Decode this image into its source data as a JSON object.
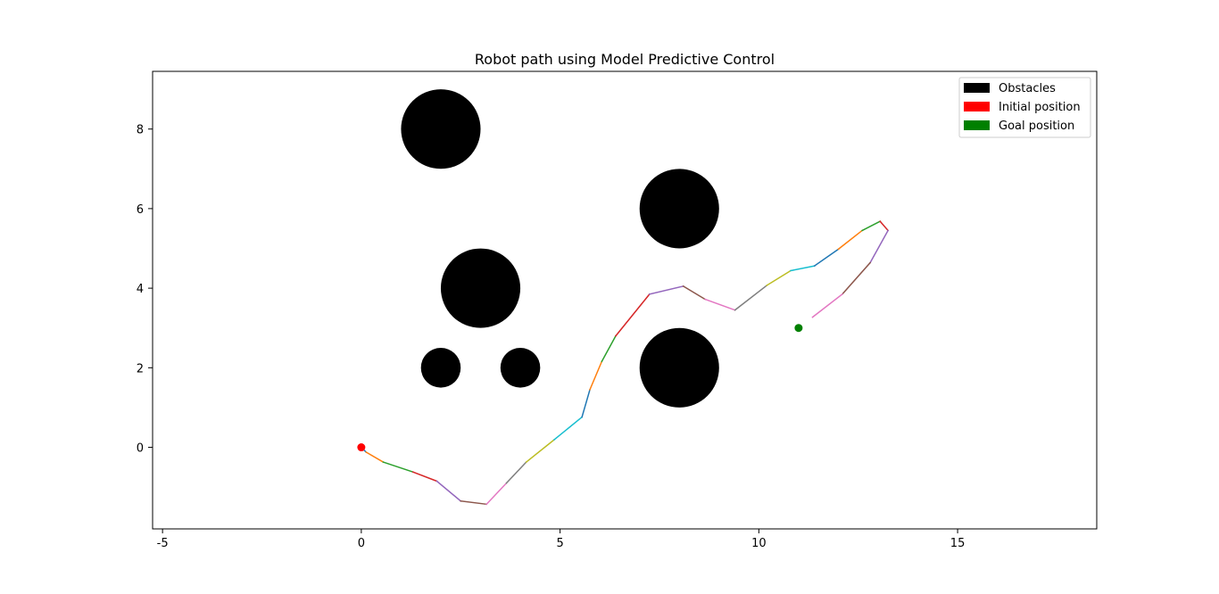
{
  "chart_data": {
    "type": "line",
    "title": "Robot path using Model Predictive Control",
    "xlabel": "",
    "ylabel": "",
    "xlim": [
      -5.25,
      18.5
    ],
    "ylim": [
      -2.05,
      9.45
    ],
    "x_ticks": [
      -5,
      0,
      5,
      10,
      15
    ],
    "y_ticks": [
      0,
      2,
      4,
      6,
      8
    ],
    "grid": false,
    "legend": {
      "placement": "top-right",
      "entries": [
        {
          "label": "Obstacles",
          "color": "#000000"
        },
        {
          "label": "Initial position",
          "color": "#ff0000"
        },
        {
          "label": "Goal position",
          "color": "#008000"
        }
      ]
    },
    "obstacles": [
      {
        "x": 2,
        "y": 8,
        "r": 1
      },
      {
        "x": 8,
        "y": 6,
        "r": 1
      },
      {
        "x": 3,
        "y": 4,
        "r": 1
      },
      {
        "x": 2,
        "y": 2,
        "r": 0.5
      },
      {
        "x": 4,
        "y": 2,
        "r": 0.5
      },
      {
        "x": 8,
        "y": 2,
        "r": 1
      }
    ],
    "initial_position": {
      "x": 0,
      "y": 0,
      "color": "#ff0000"
    },
    "goal_position": {
      "x": 11,
      "y": 3,
      "color": "#008000"
    },
    "segment_colors": [
      "#1f77b4",
      "#ff7f0e",
      "#2ca02c",
      "#d62728",
      "#9467bd",
      "#8c564b",
      "#e377c2",
      "#7f7f7f",
      "#bcbd22",
      "#17becf"
    ],
    "path": [
      [
        0.0,
        0.0
      ],
      [
        0.12,
        -0.12
      ],
      [
        0.55,
        -0.37
      ],
      [
        1.3,
        -0.62
      ],
      [
        1.9,
        -0.85
      ],
      [
        2.5,
        -1.35
      ],
      [
        3.15,
        -1.43
      ],
      [
        3.65,
        -0.9
      ],
      [
        4.15,
        -0.37
      ],
      [
        4.85,
        0.19
      ],
      [
        5.55,
        0.76
      ],
      [
        5.75,
        1.45
      ],
      [
        6.05,
        2.16
      ],
      [
        6.4,
        2.8
      ],
      [
        7.25,
        3.85
      ],
      [
        8.1,
        4.05
      ],
      [
        8.65,
        3.72
      ],
      [
        9.4,
        3.45
      ],
      [
        10.2,
        4.07
      ],
      [
        10.8,
        4.44
      ],
      [
        11.4,
        4.56
      ],
      [
        12.0,
        4.98
      ],
      [
        12.6,
        5.45
      ],
      [
        13.05,
        5.68
      ],
      [
        13.25,
        5.45
      ],
      [
        12.8,
        4.64
      ],
      [
        12.1,
        3.85
      ],
      [
        11.35,
        3.27
      ]
    ]
  }
}
